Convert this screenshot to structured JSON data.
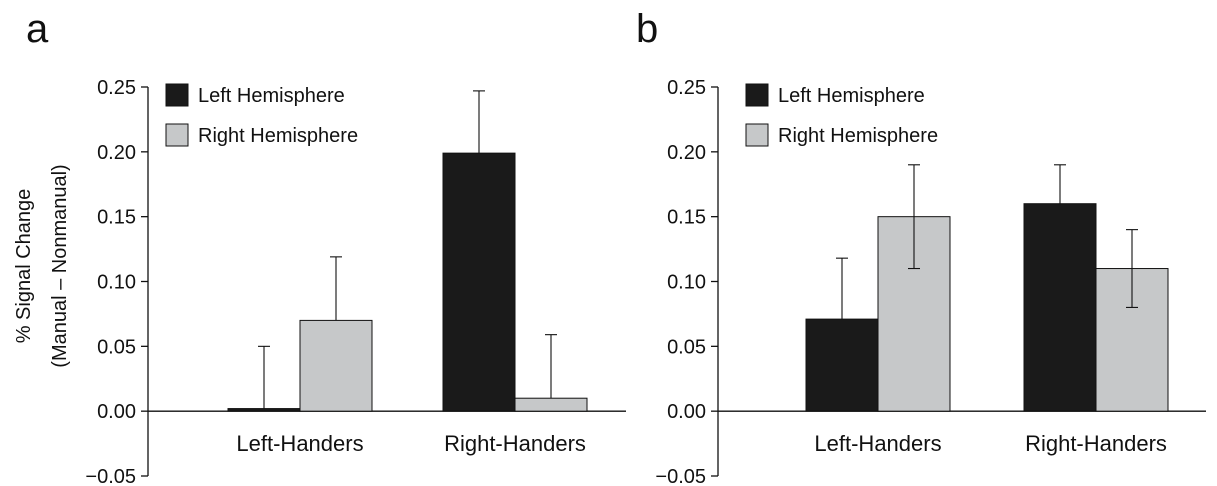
{
  "chart_data": [
    {
      "type": "bar",
      "panel_label": "a",
      "ylabel": "% Signal Change (Manual – Nonmanual)",
      "ylabel_lines": [
        "% Signal Change",
        "(Manual – Nonmanual)"
      ],
      "categories": [
        "Left-Handers",
        "Right-Handers"
      ],
      "series": [
        {
          "name": "Left Hemisphere",
          "color": "#1a1a1a",
          "values": [
            0.002,
            0.199
          ],
          "error": [
            0.048,
            0.048
          ]
        },
        {
          "name": "Right Hemisphere",
          "color": "#c6c8c9",
          "values": [
            0.07,
            0.01
          ],
          "error": [
            0.049,
            0.049
          ]
        }
      ],
      "ylim": [
        -0.05,
        0.25
      ],
      "yticks": [
        "−0.05",
        "0.00",
        "0.05",
        "0.10",
        "0.15",
        "0.20",
        "0.25"
      ],
      "legend_position": "top-left"
    },
    {
      "type": "bar",
      "panel_label": "b",
      "categories": [
        "Left-Handers",
        "Right-Handers"
      ],
      "series": [
        {
          "name": "Left Hemisphere",
          "color": "#1a1a1a",
          "values": [
            0.071,
            0.16
          ],
          "error": [
            0.047,
            0.03
          ]
        },
        {
          "name": "Right Hemisphere",
          "color": "#c6c8c9",
          "values": [
            0.15,
            0.11
          ],
          "error": [
            0.04,
            0.03
          ]
        }
      ],
      "ylim": [
        -0.05,
        0.25
      ],
      "yticks": [
        "−0.05",
        "0.00",
        "0.05",
        "0.10",
        "0.15",
        "0.20",
        "0.25"
      ],
      "legend_position": "top-left"
    }
  ]
}
